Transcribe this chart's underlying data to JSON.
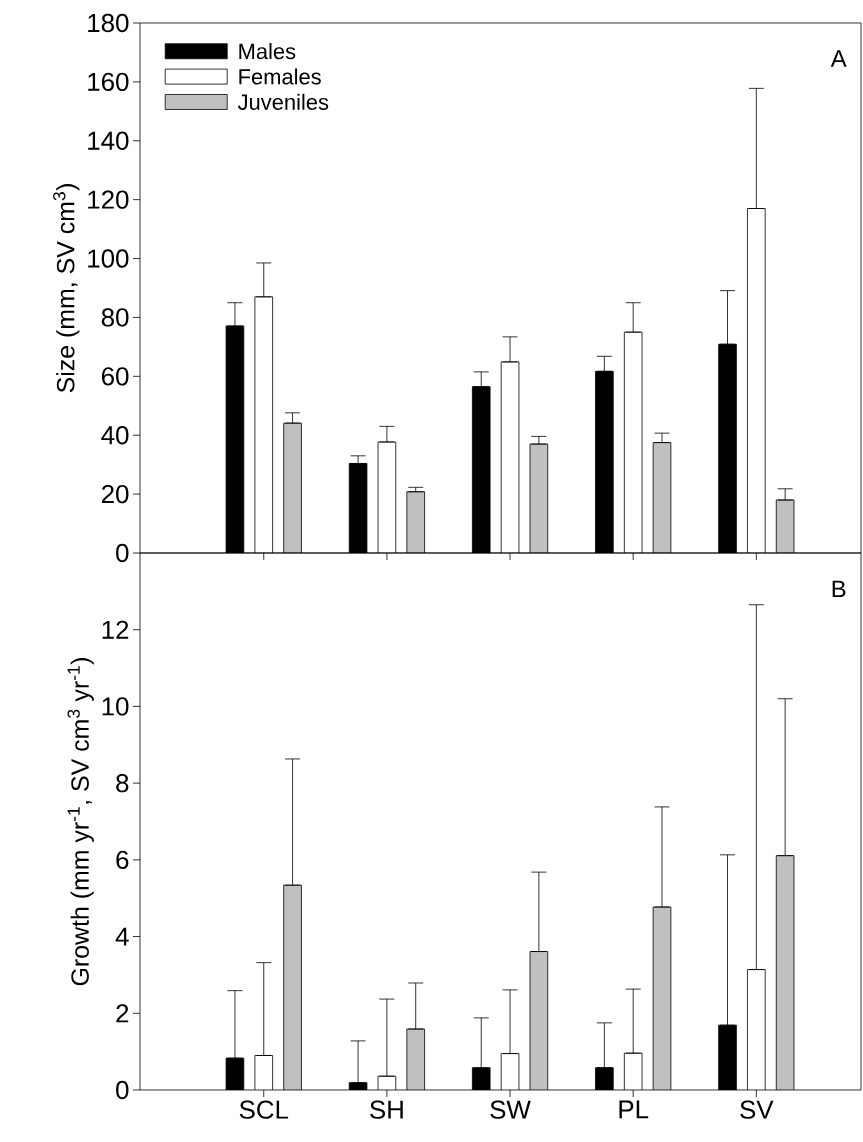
{
  "chart_data": [
    {
      "type": "bar",
      "ylabel": "Size (mm, SV cm$^{3}$)",
      "categories": [
        null,
        null,
        null,
        null,
        null
      ],
      "tick_labels": "y",
      "legend": "top left",
      "annotations": [
        "A"
      ],
      "ylim": [
        0,
        180
      ],
      "yticks": [
        0,
        20,
        40,
        60,
        80,
        100,
        120,
        140,
        160,
        180
      ],
      "series": [
        {
          "name": "Males",
          "color": "#000000",
          "values": [
            77.1,
            30.4,
            56.5,
            61.7,
            70.9
          ],
          "errors": [
            [
              77.1,
              85
            ],
            [
              30.4,
              33
            ],
            [
              56.5,
              61.5
            ],
            [
              61.7,
              66.8
            ],
            [
              70.9,
              89.1
            ]
          ]
        },
        {
          "name": "Females",
          "color": "#ffffff",
          "values": [
            87,
            37.7,
            64.9,
            75,
            117
          ],
          "errors": [
            [
              87,
              98.5
            ],
            [
              37.7,
              43
            ],
            [
              64.9,
              73.4
            ],
            [
              75,
              85
            ],
            [
              117,
              157.8
            ]
          ]
        },
        {
          "name": "Juveniles",
          "color": "#c0c0c0",
          "values": [
            44.1,
            20.8,
            37,
            37.5,
            18
          ],
          "errors": [
            [
              44.1,
              47.6
            ],
            [
              20.8,
              22.3
            ],
            [
              37,
              39.6
            ],
            [
              37.5,
              40.7
            ],
            [
              18,
              21.8
            ]
          ]
        }
      ]
    },
    {
      "type": "bar",
      "ylabel": "Growth (mm yr$^{-1}$, SV cm$^{3}$ yr$^{-1}$)",
      "categories": [
        "SCL",
        "SH",
        "SW",
        "PL",
        "SV"
      ],
      "annotations": [
        "B"
      ],
      "ylim": [
        0,
        14
      ],
      "yticks": [
        0,
        2,
        4,
        6,
        8,
        10,
        12
      ],
      "series": [
        {
          "color": "#000000",
          "values": [
            0.83,
            0.19,
            0.58,
            0.58,
            1.69
          ],
          "errors": [
            [
              0.83,
              2.59
            ],
            [
              0.19,
              1.28
            ],
            [
              0.58,
              1.88
            ],
            [
              0.58,
              1.75
            ],
            [
              1.69,
              6.13
            ]
          ]
        },
        {
          "color": "#ffffff",
          "values": [
            0.9,
            0.36,
            0.95,
            0.96,
            3.14
          ],
          "errors": [
            [
              0.9,
              3.32
            ],
            [
              0.36,
              2.37
            ],
            [
              0.95,
              2.61
            ],
            [
              0.96,
              2.63
            ],
            [
              3.14,
              12.65
            ]
          ]
        },
        {
          "color": "#c0c0c0",
          "values": [
            5.34,
            1.59,
            3.61,
            4.77,
            6.11
          ],
          "errors": [
            [
              5.34,
              8.63
            ],
            [
              1.59,
              2.79
            ],
            [
              3.61,
              5.68
            ],
            [
              4.77,
              7.38
            ],
            [
              6.11,
              10.2
            ]
          ]
        }
      ]
    }
  ]
}
